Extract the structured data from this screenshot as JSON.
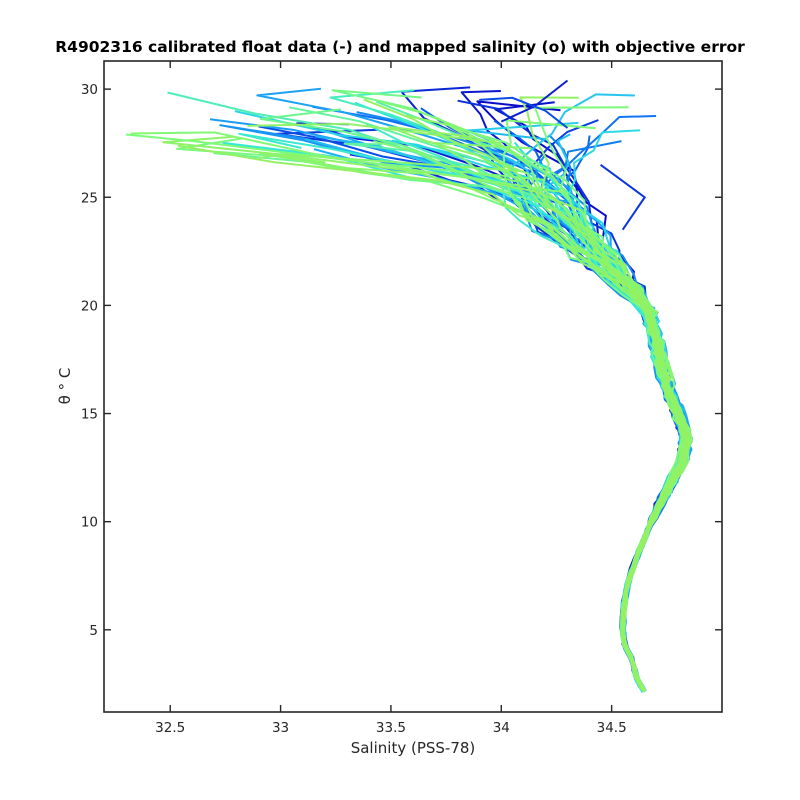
{
  "chart_data": {
    "type": "line",
    "title": "R4902316 calibrated float data (-) and mapped salinity (o) with objective error",
    "xlabel": "Salinity (PSS-78)",
    "ylabel": "θ ° C",
    "xlim": [
      32.2,
      35.0
    ],
    "ylim": [
      1.2,
      31.3
    ],
    "xticks": [
      32.5,
      33,
      33.5,
      34,
      34.5
    ],
    "yticks": [
      5,
      10,
      15,
      20,
      25,
      30
    ],
    "grid": false,
    "legend": "none",
    "profile_count": 64,
    "color_gradient": [
      "#0a0ac8",
      "#0a5ff0",
      "#1fb0f5",
      "#2ee6e0",
      "#7cfa7a",
      "#96f060"
    ],
    "deep_profile": {
      "theta": [
        2.1,
        2.8,
        3.5,
        4.3,
        5.0,
        6.0,
        7.0,
        8.0,
        9.0,
        10.0,
        11.0,
        12.0,
        13.0,
        14.0,
        15.0,
        16.0,
        17.0,
        18.0,
        19.0,
        20.0,
        21.0,
        22.0,
        23.0,
        24.0
      ],
      "salinity": [
        34.65,
        34.61,
        34.6,
        34.56,
        34.55,
        34.555,
        34.57,
        34.6,
        34.64,
        34.68,
        34.73,
        34.78,
        34.83,
        34.84,
        34.8,
        34.76,
        34.73,
        34.71,
        34.69,
        34.66,
        34.62,
        34.57,
        34.53,
        34.49
      ]
    },
    "surface_ranges": {
      "low_salinity_extreme": {
        "salinity": 32.3,
        "theta": 27.9
      },
      "high_salinity_extreme": {
        "salinity": 34.6,
        "theta": 26.0
      },
      "max_theta": 30.4
    }
  }
}
